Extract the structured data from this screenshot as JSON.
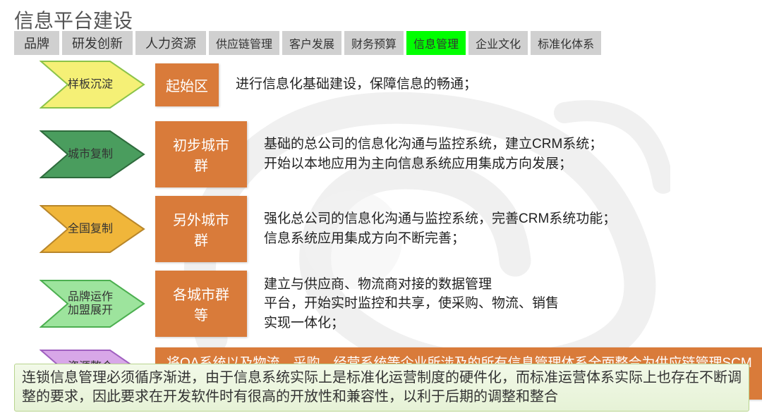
{
  "title": "信息平台建设",
  "tabs": [
    {
      "label": "品牌",
      "active": false,
      "small": false
    },
    {
      "label": "研发创新",
      "active": false,
      "small": false
    },
    {
      "label": "人力资源",
      "active": false,
      "small": false
    },
    {
      "label": "供应链管理",
      "active": false,
      "small": true
    },
    {
      "label": "客户发展",
      "active": false,
      "small": true
    },
    {
      "label": "财务预算",
      "active": false,
      "small": true
    },
    {
      "label": "信息管理",
      "active": true,
      "small": true
    },
    {
      "label": "企业文化",
      "active": false,
      "small": true
    },
    {
      "label": "标准化体系",
      "active": false,
      "small": true
    }
  ],
  "stages": [
    {
      "arrow_label": "样板沉淀",
      "arrow_fill": "#f5f076",
      "arrow_stroke": "#8bc34a",
      "phase": "起始区",
      "phase_class": "narrow",
      "desc": "进行信息化基础建设，保障信息的畅通；",
      "full": false
    },
    {
      "arrow_label": "城市复制",
      "arrow_fill": "#4a9d5e",
      "arrow_stroke": "#2e6b3c",
      "phase": "初步城市群",
      "phase_class": "mid",
      "desc": "基础的总公司的信息化沟通与监控系统，建立CRM系统；\n开始以本地应用为主向信息系统应用集成方向发展；",
      "full": false
    },
    {
      "arrow_label": "全国复制",
      "arrow_fill": "#f0b63a",
      "arrow_stroke": "#b8862a",
      "phase": "另外城市群",
      "phase_class": "mid",
      "desc": "强化总公司的信息化沟通与监控系统，完善CRM系统功能；\n信息系统应用集成方向不断完善；",
      "full": false
    },
    {
      "arrow_label": "品牌运作\n加盟展开",
      "arrow_fill": "#9de49d",
      "arrow_stroke": "#4caf50",
      "phase": "各城市群等",
      "phase_class": "mid",
      "desc": "建立与供应商、物流商对接的数据管理\n平台，开始实时监控和共享，使采购、物流、销售\n实现一体化；",
      "full": false
    },
    {
      "arrow_label": "资源整合\n上市准备",
      "arrow_fill": "#d8a7e8",
      "arrow_stroke": "#a060c0",
      "phase": "将OA系统以及物流、采购、经营系统等企业所涉及的所有信息管理体系全面整合为供应链管理SCM系统；",
      "phase_class": "",
      "desc": "",
      "full": true
    }
  ],
  "footer": "连锁信息管理必须循序渐进，由于信息系统实际上是标准化运营制度的硬件化，而标准运营体系实际上也存在不断调整的要求，因此要求在开发软件时有很高的开放性和兼容性，以利于后期的调整和整合",
  "colors": {
    "phase_box": "#d97b3a",
    "tab_default": "#d0d0d0",
    "tab_active": "#00ff00",
    "footer_bg_top": "#f2f9e8",
    "footer_bg_bottom": "#e6f2d6",
    "footer_border": "#b8d48e"
  }
}
